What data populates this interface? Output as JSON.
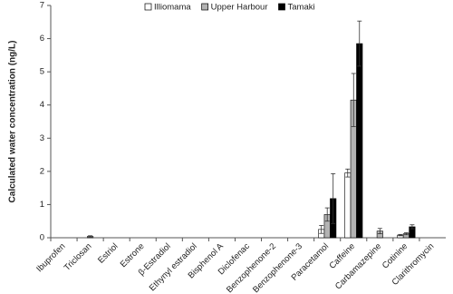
{
  "chart_data": {
    "type": "bar",
    "y_label": "Calculated water concentration (ng/L)",
    "categories": [
      "Ibuprofen",
      "Triclosan",
      "Estriol",
      "Estrone",
      "β-Estradiol",
      "Ethynyl estradiol",
      "Bisphenol A",
      "Diclofenac",
      "Benzophenone-2",
      "Benzophenone-3",
      "Paracetamol",
      "Caffeine",
      "Carbamazepine",
      "Cotinine",
      "Clarithromycin"
    ],
    "series": [
      {
        "name": "Illiomama",
        "color": "#ffffff",
        "values": [
          0,
          0,
          0,
          0,
          0,
          0,
          0,
          0,
          0,
          0,
          0.25,
          1.95,
          0,
          0.08,
          0
        ],
        "errors": [
          null,
          null,
          null,
          null,
          null,
          null,
          null,
          null,
          null,
          null,
          0.12,
          0.12,
          null,
          0.02,
          null
        ]
      },
      {
        "name": "Upper Harbour",
        "color": "#b3b3b3",
        "values": [
          0,
          0.04,
          0,
          0,
          0,
          0,
          0,
          0,
          0,
          0,
          0.7,
          4.15,
          0.2,
          0.12,
          0
        ],
        "errors": [
          null,
          0.02,
          null,
          null,
          null,
          null,
          null,
          null,
          null,
          null,
          0.2,
          0.8,
          0.08,
          0.03,
          null
        ]
      },
      {
        "name": "Tamaki",
        "color": "#000000",
        "values": [
          0,
          0,
          0,
          0,
          0,
          0,
          0,
          0,
          0,
          0,
          1.18,
          5.85,
          0,
          0.33,
          0
        ],
        "errors": [
          null,
          null,
          null,
          null,
          null,
          null,
          null,
          null,
          null,
          null,
          0.75,
          0.68,
          null,
          0.06,
          null
        ]
      }
    ],
    "ylim": [
      0,
      7
    ],
    "yticks": [
      0,
      1,
      2,
      3,
      4,
      5,
      6,
      7
    ],
    "legend": "top"
  }
}
